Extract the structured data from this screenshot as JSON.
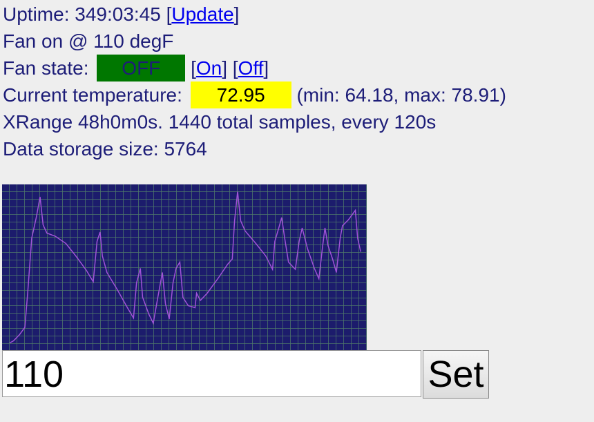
{
  "status": {
    "uptime": {
      "prefix": "Uptime: 349:03:45 [",
      "link": "Update",
      "suffix": "]"
    },
    "fan_on": "Fan on @ 110 degF",
    "fan_state": {
      "label": "Fan state:",
      "state": "OFF",
      "open1": "[",
      "on": "On",
      "mid": "] [",
      "off": "Off",
      "close": "]"
    },
    "temperature": {
      "label": "Current temperature:",
      "value": "72.95",
      "range": "(min: 64.18, max: 78.91)"
    },
    "xrange": "XRange 48h0m0s. 1440 total samples, every 120s",
    "storage": "Data storage size: 5764"
  },
  "chart_data": {
    "type": "line",
    "color": "#a052d8",
    "background": "#1c1c6c",
    "grid": true,
    "xlim": [
      0,
      48
    ],
    "ylim": [
      63.5,
      79.5
    ],
    "x": [
      1.0,
      1.5,
      2.3,
      3.0,
      3.4,
      3.9,
      4.5,
      5.0,
      5.4,
      5.9,
      7.0,
      8.4,
      9.7,
      11.1,
      12.0,
      12.5,
      12.9,
      13.2,
      13.8,
      15.2,
      16.5,
      17.3,
      17.7,
      18.2,
      18.5,
      19.3,
      19.9,
      20.5,
      21.1,
      21.5,
      22.0,
      22.5,
      22.9,
      23.4,
      23.8,
      24.5,
      25.4,
      25.6,
      26.1,
      27.0,
      28.4,
      29.7,
      30.3,
      30.6,
      31.0,
      31.4,
      32.0,
      33.4,
      34.7,
      35.6,
      35.9,
      36.5,
      36.8,
      37.2,
      37.7,
      38.6,
      39.1,
      39.5,
      40.2,
      41.1,
      41.7,
      42.2,
      42.5,
      42.9,
      43.5,
      44.0,
      44.5,
      44.8,
      45.6,
      46.5,
      46.8,
      47.2
    ],
    "values": [
      64.2,
      64.4,
      65.0,
      65.7,
      69.3,
      74.3,
      76.3,
      78.3,
      75.6,
      74.8,
      74.5,
      73.8,
      72.6,
      71.2,
      70.1,
      74.0,
      74.9,
      72.6,
      71.0,
      69.3,
      67.6,
      66.6,
      70.0,
      71.4,
      68.6,
      67.0,
      66.1,
      68.6,
      71.0,
      68.0,
      66.5,
      70.0,
      71.4,
      72.0,
      68.6,
      67.8,
      67.6,
      69.0,
      68.3,
      69.0,
      70.4,
      71.8,
      72.3,
      76.0,
      78.8,
      76.0,
      75.0,
      73.8,
      72.6,
      71.3,
      74.0,
      75.5,
      76.3,
      74.3,
      72.0,
      71.3,
      74.0,
      75.3,
      73.3,
      71.4,
      70.4,
      73.6,
      75.3,
      73.6,
      72.3,
      71.0,
      74.3,
      75.5,
      76.1,
      77.0,
      74.3,
      73.0
    ]
  },
  "form": {
    "input": "110",
    "button": "Set"
  }
}
